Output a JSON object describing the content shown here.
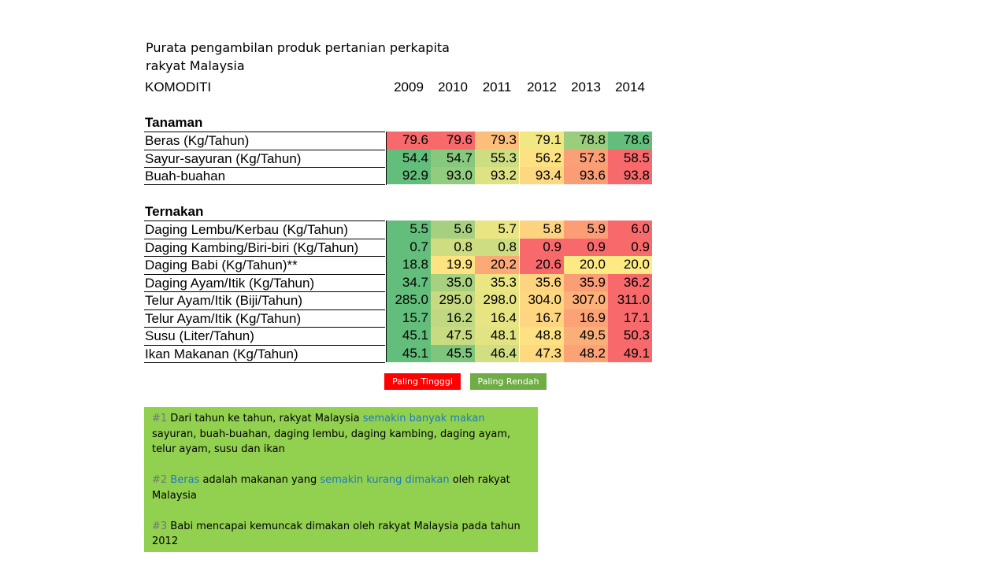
{
  "title_line1": "Purata pengambilan produk pertanian perkapita",
  "title_line2": "rakyat Malaysia",
  "chart_data": {
    "type": "table",
    "header": "KOMODITI",
    "years": [
      "2009",
      "2010",
      "2011",
      "2012",
      "2013",
      "2014"
    ],
    "sections": [
      {
        "name": "Tanaman",
        "rows": [
          {
            "label": "Beras (Kg/Tahun)",
            "values": [
              "79.6",
              "79.6",
              "79.3",
              "79.1",
              "78.8",
              "78.6"
            ],
            "colors": [
              "#f8696b",
              "#f8696b",
              "#fcbf7b",
              "#f1e783",
              "#9bcd7d",
              "#63be7b"
            ]
          },
          {
            "label": "Sayur-sayuran (Kg/Tahun)",
            "values": [
              "54.4",
              "54.7",
              "55.3",
              "56.2",
              "57.3",
              "58.5"
            ],
            "colors": [
              "#63be7b",
              "#86c87e",
              "#ccdd82",
              "#fee182",
              "#fba076",
              "#f8696b"
            ]
          },
          {
            "label": "Buah-buahan",
            "values": [
              "92.9",
              "93.0",
              "93.2",
              "93.4",
              "93.6",
              "93.8"
            ],
            "colors": [
              "#63be7b",
              "#92cc7e",
              "#dfe283",
              "#fed880",
              "#fa9d75",
              "#f8696b"
            ]
          }
        ]
      },
      {
        "name": "Ternakan",
        "rows": [
          {
            "label": "Daging Lembu/Kerbau (Kg/Tahun)",
            "values": [
              "5.5",
              "5.6",
              "5.7",
              "5.8",
              "5.9",
              "6.0"
            ],
            "colors": [
              "#63be7b",
              "#a6d07f",
              "#e9e583",
              "#fed380",
              "#fb9e75",
              "#f8696b"
            ]
          },
          {
            "label": "Daging Kambing/Biri-biri (Kg/Tahun)",
            "values": [
              "0.7",
              "0.8",
              "0.8",
              "0.9",
              "0.9",
              "0.9"
            ],
            "colors": [
              "#63be7b",
              "#cfdd82",
              "#cfdd82",
              "#f8696b",
              "#f8696b",
              "#f8696b"
            ]
          },
          {
            "label": "Daging Babi (Kg/Tahun)**",
            "values": [
              "18.8",
              "19.9",
              "20.2",
              "20.6",
              "20.0",
              "20.0"
            ],
            "colors": [
              "#63be7b",
              "#fee382",
              "#fbaa77",
              "#f8696b",
              "#feea84",
              "#feea84"
            ]
          },
          {
            "label": "Daging Ayam/Itik (Kg/Tahun)",
            "values": [
              "34.7",
              "35.0",
              "35.3",
              "35.6",
              "35.9",
              "36.2"
            ],
            "colors": [
              "#63be7b",
              "#a7d07f",
              "#ebe683",
              "#fed480",
              "#fb9e75",
              "#f8696b"
            ]
          },
          {
            "label": "Telur Ayam/Itik (Biji/Tahun)",
            "values": [
              "285.0",
              "295.0",
              "298.0",
              "304.0",
              "307.0",
              "311.0"
            ],
            "colors": [
              "#63be7b",
              "#c7da81",
              "#e6e483",
              "#fed880",
              "#fbb179",
              "#f8696b"
            ]
          },
          {
            "label": "Telur Ayam/Itik (Kg/Tahun)",
            "values": [
              "15.7",
              "16.2",
              "16.4",
              "16.7",
              "16.9",
              "17.1"
            ],
            "colors": [
              "#63be7b",
              "#c0d881",
              "#e6e483",
              "#fed580",
              "#fba276",
              "#f8696b"
            ]
          },
          {
            "label": "Susu (Liter/Tahun)",
            "values": [
              "45.1",
              "47.5",
              "48.1",
              "48.8",
              "49.5",
              "50.3"
            ],
            "colors": [
              "#63be7b",
              "#c8db81",
              "#e2e383",
              "#fee182",
              "#fbaf78",
              "#f8696b"
            ]
          },
          {
            "label": "Ikan Makanan (Kg/Tahun)",
            "values": [
              "45.1",
              "45.5",
              "46.4",
              "47.3",
              "48.2",
              "49.1"
            ],
            "colors": [
              "#63be7b",
              "#7ec67d",
              "#d1de82",
              "#fed980",
              "#fba276",
              "#f8696b"
            ]
          }
        ]
      }
    ]
  },
  "legend": {
    "high": {
      "label": "Paling Tingggi",
      "color": "#ff0000"
    },
    "low": {
      "label": "Paling Rendah",
      "color": "#70ad47"
    }
  },
  "notes": {
    "n1_num": "#1",
    "n1_a": " Dari tahun ke tahun, rakyat Malaysia ",
    "n1_hl": "semakin banyak makan",
    "n1_b": " sayuran, buah-buahan, daging lembu, daging kambing, daging ayam, telur ayam, susu dan ikan",
    "n2_num": "#2",
    "n2_hl1": " Beras",
    "n2_a": " adalah makanan yang ",
    "n2_hl2": "semakin kurang dimakan",
    "n2_b": " oleh rakyat Malaysia",
    "n3_num": "#3",
    "n3_a": " Babi mencapai kemuncak dimakan oleh rakyat Malaysia pada tahun 2012"
  }
}
